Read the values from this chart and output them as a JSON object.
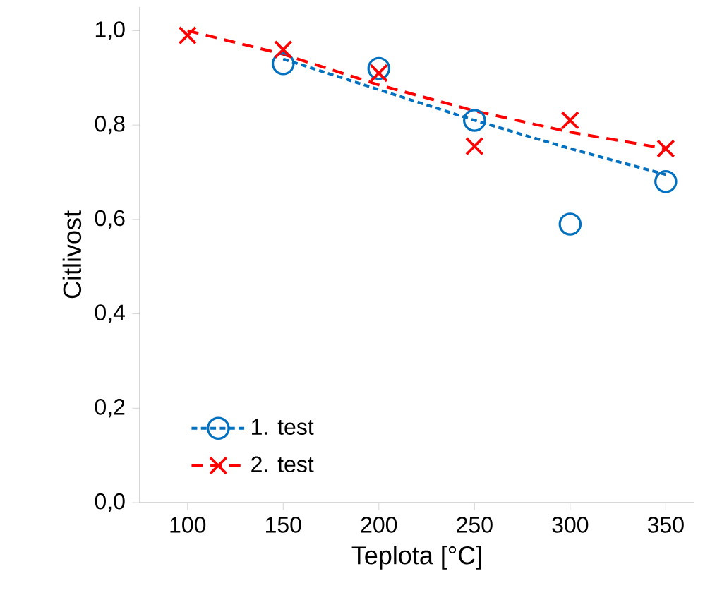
{
  "chart_data": {
    "type": "scatter",
    "xlabel": "Teplota [°C]",
    "ylabel": "Citlivost",
    "xlim": [
      75,
      365
    ],
    "ylim": [
      0,
      1.05
    ],
    "xticks": [
      100,
      150,
      200,
      250,
      300,
      350
    ],
    "yticks": [
      {
        "value": 0,
        "label": "0,0"
      },
      {
        "value": 0.2,
        "label": "0,2"
      },
      {
        "value": 0.4,
        "label": "0,4"
      },
      {
        "value": 0.6,
        "label": "0,6"
      },
      {
        "value": 0.8,
        "label": "0,8"
      },
      {
        "value": 1.0,
        "label": "1,0"
      }
    ],
    "grid": false,
    "legend": "bottom left",
    "series": [
      {
        "name": "1. test",
        "marker": "circle",
        "color": "#0070c0",
        "x": [
          150,
          200,
          250,
          300,
          350
        ],
        "values": [
          0.93,
          0.92,
          0.81,
          0.59,
          0.68
        ]
      },
      {
        "type": "line",
        "line_style": "dotted",
        "color": "#0070c0",
        "x": [
          150,
          200,
          250,
          300,
          350
        ],
        "values": [
          0.94,
          0.875,
          0.81,
          0.75,
          0.695
        ]
      },
      {
        "name": "2. test",
        "marker": "cross",
        "color": "#ff0000",
        "x": [
          100,
          150,
          200,
          250,
          300,
          350
        ],
        "values": [
          0.99,
          0.96,
          0.91,
          0.755,
          0.81,
          0.75
        ]
      },
      {
        "type": "line",
        "line_style": "dashed",
        "color": "#ff0000",
        "x": [
          100,
          150,
          200,
          250,
          300,
          350
        ],
        "values": [
          1.0,
          0.95,
          0.885,
          0.83,
          0.785,
          0.75
        ]
      }
    ]
  }
}
